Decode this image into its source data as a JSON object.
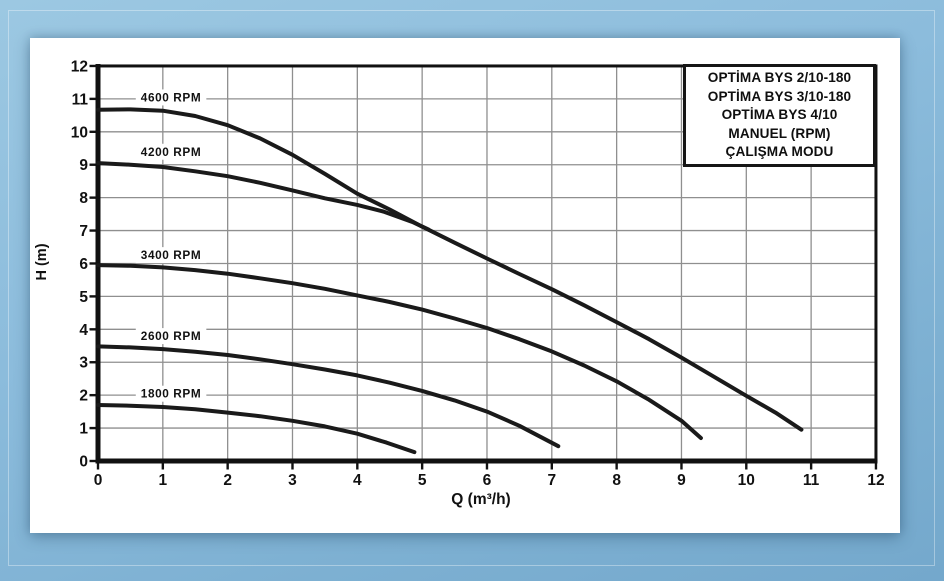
{
  "colors": {
    "curve": "#1a1a1a",
    "grid": "#8f8f8f",
    "axis": "#111111",
    "panel": "#ffffff",
    "page_blue": "#8cbcdc",
    "legend_border": "#151515",
    "text": "#111111"
  },
  "chart_data": {
    "type": "line",
    "title": "",
    "xlabel": "Q (m³/h)",
    "ylabel": "H (m)",
    "xlim": [
      0,
      12
    ],
    "ylim": [
      0,
      12
    ],
    "xticks": [
      0,
      1,
      2,
      3,
      4,
      5,
      6,
      7,
      8,
      9,
      10,
      11,
      12
    ],
    "yticks": [
      0,
      1,
      2,
      3,
      4,
      5,
      6,
      7,
      8,
      9,
      10,
      11,
      12
    ],
    "grid": true,
    "legend": {
      "position": "top-right",
      "lines": [
        "OPTİMA BYS 2/10-180",
        "OPTİMA BYS 3/10-180",
        "OPTİMA BYS 4/10",
        "MANUEL (RPM)",
        "ÇALIŞMA MODU"
      ]
    },
    "series": [
      {
        "name": "4600 RPM",
        "label_q": 0.66,
        "label_h": 11.05,
        "points": [
          [
            0,
            10.67
          ],
          [
            0.5,
            10.68
          ],
          [
            1,
            10.64
          ],
          [
            1.5,
            10.48
          ],
          [
            2,
            10.2
          ],
          [
            2.5,
            9.8
          ],
          [
            3,
            9.3
          ],
          [
            3.5,
            8.72
          ],
          [
            4,
            8.12
          ],
          [
            4.5,
            7.64
          ],
          [
            5,
            7.12
          ],
          [
            5.5,
            6.63
          ],
          [
            6,
            6.15
          ],
          [
            6.5,
            5.68
          ],
          [
            7,
            5.22
          ],
          [
            7.5,
            4.73
          ],
          [
            8,
            4.22
          ],
          [
            8.5,
            3.7
          ],
          [
            9,
            3.14
          ],
          [
            9.5,
            2.56
          ],
          [
            10,
            1.98
          ],
          [
            10.45,
            1.47
          ],
          [
            10.85,
            0.95
          ]
        ]
      },
      {
        "name": "4200 RPM",
        "label_q": 0.66,
        "label_h": 9.4,
        "points": [
          [
            0,
            9.05
          ],
          [
            0.5,
            9.0
          ],
          [
            1,
            8.93
          ],
          [
            1.5,
            8.8
          ],
          [
            2,
            8.65
          ],
          [
            2.5,
            8.45
          ],
          [
            3,
            8.22
          ],
          [
            3.5,
            7.98
          ],
          [
            4,
            7.78
          ],
          [
            4.4,
            7.58
          ],
          [
            4.85,
            7.26
          ],
          [
            5.1,
            7.03
          ]
        ]
      },
      {
        "name": "3400 RPM",
        "label_q": 0.66,
        "label_h": 6.26,
        "points": [
          [
            0,
            5.95
          ],
          [
            0.5,
            5.93
          ],
          [
            1,
            5.88
          ],
          [
            1.5,
            5.8
          ],
          [
            2,
            5.69
          ],
          [
            2.5,
            5.55
          ],
          [
            3,
            5.4
          ],
          [
            3.5,
            5.23
          ],
          [
            4,
            5.03
          ],
          [
            4.5,
            4.83
          ],
          [
            5,
            4.6
          ],
          [
            5.5,
            4.33
          ],
          [
            6,
            4.04
          ],
          [
            6.5,
            3.7
          ],
          [
            7,
            3.33
          ],
          [
            7.5,
            2.9
          ],
          [
            8,
            2.42
          ],
          [
            8.5,
            1.86
          ],
          [
            9,
            1.22
          ],
          [
            9.3,
            0.7
          ]
        ]
      },
      {
        "name": "2600 RPM",
        "label_q": 0.66,
        "label_h": 3.8,
        "points": [
          [
            0,
            3.48
          ],
          [
            0.5,
            3.45
          ],
          [
            1,
            3.4
          ],
          [
            1.5,
            3.32
          ],
          [
            2,
            3.22
          ],
          [
            2.5,
            3.09
          ],
          [
            3,
            2.94
          ],
          [
            3.5,
            2.78
          ],
          [
            4,
            2.6
          ],
          [
            4.5,
            2.38
          ],
          [
            5,
            2.13
          ],
          [
            5.5,
            1.84
          ],
          [
            6,
            1.5
          ],
          [
            6.5,
            1.07
          ],
          [
            7.1,
            0.45
          ]
        ]
      },
      {
        "name": "1800 RPM",
        "label_q": 0.66,
        "label_h": 2.05,
        "points": [
          [
            0,
            1.7
          ],
          [
            0.5,
            1.68
          ],
          [
            1,
            1.64
          ],
          [
            1.5,
            1.57
          ],
          [
            2,
            1.47
          ],
          [
            2.5,
            1.36
          ],
          [
            3,
            1.22
          ],
          [
            3.5,
            1.05
          ],
          [
            4,
            0.83
          ],
          [
            4.45,
            0.56
          ],
          [
            4.88,
            0.27
          ]
        ]
      }
    ]
  }
}
